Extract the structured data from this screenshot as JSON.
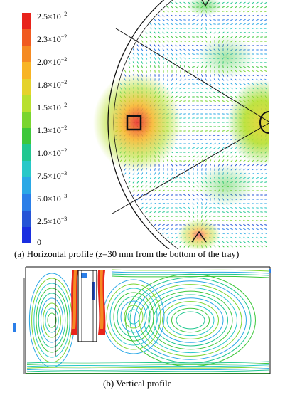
{
  "panel_a": {
    "colorbar": {
      "colors": [
        "#e8231b",
        "#f05a20",
        "#f58a22",
        "#f8b424",
        "#e5d22a",
        "#b8e02e",
        "#79d52f",
        "#3dc73a",
        "#20c790",
        "#28c8c8",
        "#2aa8e6",
        "#2a7ee8",
        "#2554d6",
        "#1a2ee0"
      ],
      "ticks": [
        {
          "mantissa": "2.5×10",
          "exp": "−2"
        },
        {
          "mantissa": "2.3×10",
          "exp": "−2"
        },
        {
          "mantissa": "2.0×10",
          "exp": "−2"
        },
        {
          "mantissa": "1.8×10",
          "exp": "−2"
        },
        {
          "mantissa": "1.5×10",
          "exp": "−2"
        },
        {
          "mantissa": "1.3×10",
          "exp": "−2"
        },
        {
          "mantissa": "1.0×10",
          "exp": "−2"
        },
        {
          "mantissa": "7.5×10",
          "exp": "−3"
        },
        {
          "mantissa": "5.0×10",
          "exp": "−3"
        },
        {
          "mantissa": "2.5×10",
          "exp": "−3"
        },
        {
          "mantissa": "0",
          "exp": ""
        }
      ]
    },
    "caption": {
      "prefix": "(a) Horizontal profile (",
      "var": "z",
      "suffix": "=30 mm from the bottom of the tray)"
    }
  },
  "panel_b": {
    "caption": "(b) Vertical profile"
  }
}
